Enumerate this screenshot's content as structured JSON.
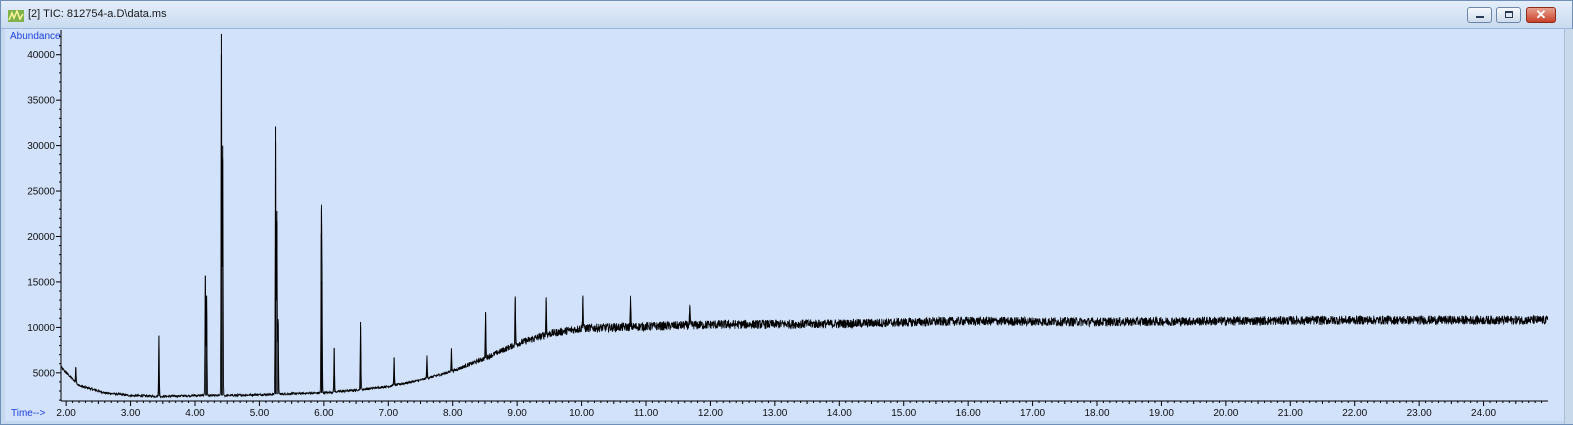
{
  "window": {
    "title": "[2] TIC: 812754-a.D\\data.ms",
    "controls": {
      "minimize": "minimize",
      "maximize": "maximize",
      "close": "✕"
    }
  },
  "colors": {
    "plot_background": "#d1e2fa",
    "trace": "#000000",
    "axis_label": "#1e40e0"
  },
  "chart_data": {
    "type": "line",
    "title": "[2] TIC: 812754-a.D\\data.ms",
    "ylabel": "Abundance",
    "xlabel": "Time-->",
    "xlim": [
      1.92,
      25.0
    ],
    "ylim": [
      1900,
      42500
    ],
    "x_ticks": [
      "2.00",
      "3.00",
      "4.00",
      "5.00",
      "6.00",
      "7.00",
      "8.00",
      "9.00",
      "10.00",
      "11.00",
      "12.00",
      "13.00",
      "14.00",
      "15.00",
      "16.00",
      "17.00",
      "18.00",
      "19.00",
      "20.00",
      "21.00",
      "22.00",
      "23.00",
      "24.00"
    ],
    "y_ticks": [
      "5000",
      "10000",
      "15000",
      "20000",
      "25000",
      "30000",
      "35000",
      "40000"
    ],
    "grid": false,
    "baseline": [
      [
        1.92,
        5600
      ],
      [
        2.2,
        3600
      ],
      [
        2.6,
        2800
      ],
      [
        3.0,
        2500
      ],
      [
        3.5,
        2400
      ],
      [
        4.0,
        2500
      ],
      [
        4.5,
        2500
      ],
      [
        5.0,
        2600
      ],
      [
        5.5,
        2700
      ],
      [
        6.0,
        2800
      ],
      [
        6.5,
        3100
      ],
      [
        7.0,
        3500
      ],
      [
        7.5,
        4200
      ],
      [
        8.0,
        5200
      ],
      [
        8.5,
        6600
      ],
      [
        9.0,
        8200
      ],
      [
        9.5,
        9300
      ],
      [
        10.0,
        9900
      ],
      [
        10.5,
        10000
      ],
      [
        11.0,
        10100
      ],
      [
        12.0,
        10300
      ],
      [
        14.0,
        10400
      ],
      [
        16.0,
        10700
      ],
      [
        18.0,
        10600
      ],
      [
        20.0,
        10700
      ],
      [
        22.0,
        10800
      ],
      [
        24.0,
        10800
      ],
      [
        25.0,
        10800
      ]
    ],
    "noise_amplitude": 1000,
    "peaks": [
      {
        "x": 2.15,
        "y": 5600
      },
      {
        "x": 3.44,
        "y": 9100
      },
      {
        "x": 4.16,
        "y": 15700
      },
      {
        "x": 4.18,
        "y": 13500
      },
      {
        "x": 4.41,
        "y": 42300
      },
      {
        "x": 4.43,
        "y": 30000
      },
      {
        "x": 5.25,
        "y": 32100
      },
      {
        "x": 5.27,
        "y": 22800
      },
      {
        "x": 5.29,
        "y": 10900
      },
      {
        "x": 5.96,
        "y": 20300
      },
      {
        "x": 5.97,
        "y": 15100
      },
      {
        "x": 6.16,
        "y": 7700
      },
      {
        "x": 6.57,
        "y": 10600
      },
      {
        "x": 7.09,
        "y": 6700
      },
      {
        "x": 7.6,
        "y": 6800
      },
      {
        "x": 7.98,
        "y": 7700
      },
      {
        "x": 8.51,
        "y": 11700
      },
      {
        "x": 8.97,
        "y": 13400
      },
      {
        "x": 9.45,
        "y": 13300
      },
      {
        "x": 10.02,
        "y": 13400
      },
      {
        "x": 10.76,
        "y": 13100
      },
      {
        "x": 11.68,
        "y": 12200
      }
    ]
  }
}
